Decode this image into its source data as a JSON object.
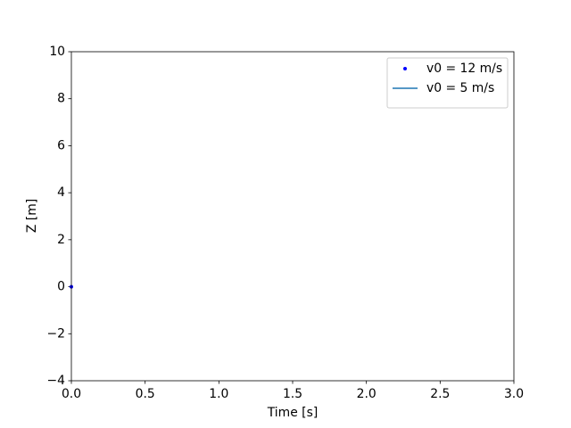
{
  "chart_data": {
    "type": "line",
    "xlabel": "Time [s]",
    "ylabel": "Z [m]",
    "xlim": [
      0,
      3
    ],
    "ylim": [
      -4,
      10
    ],
    "xticks": [
      {
        "value": 0,
        "label": "0.0"
      },
      {
        "value": 0.5,
        "label": "0.5"
      },
      {
        "value": 1,
        "label": "1.0"
      },
      {
        "value": 1.5,
        "label": "1.5"
      },
      {
        "value": 2,
        "label": "2.0"
      },
      {
        "value": 2.5,
        "label": "2.5"
      },
      {
        "value": 3,
        "label": "3.0"
      }
    ],
    "yticks": [
      {
        "value": -4,
        "label": "−4"
      },
      {
        "value": -2,
        "label": "−2"
      },
      0,
      2,
      4,
      6,
      8,
      10
    ],
    "legend": "upper right",
    "series": [
      {
        "name": "v0 = 12 m/s",
        "color": "#0000ff",
        "mode": "markers",
        "x": [
          0
        ],
        "values": [
          0
        ]
      },
      {
        "name": "v0 = 5 m/s",
        "color": "#1f77b4",
        "mode": "lines",
        "x": [
          0
        ],
        "values": [
          0
        ]
      }
    ]
  }
}
